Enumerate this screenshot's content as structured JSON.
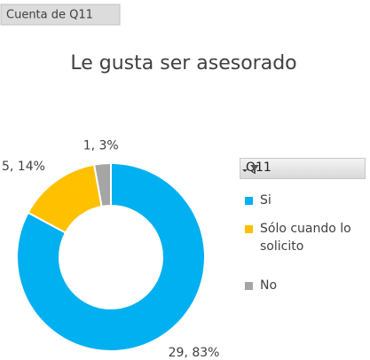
{
  "chart_data": {
    "type": "doughnut",
    "field_button": "Cuenta de Q11",
    "title": "Le gusta ser asesorado",
    "legend_title": "Q11",
    "categories": [
      "Si",
      "Sólo cuando lo solicito",
      "No"
    ],
    "values": [
      29,
      5,
      1
    ],
    "value_labels": [
      "29, 83%",
      "5, 14%",
      "1, 3%"
    ],
    "colors": [
      "#00b0f0",
      "#ffc000",
      "#a5a5a5"
    ],
    "legend": "right"
  }
}
